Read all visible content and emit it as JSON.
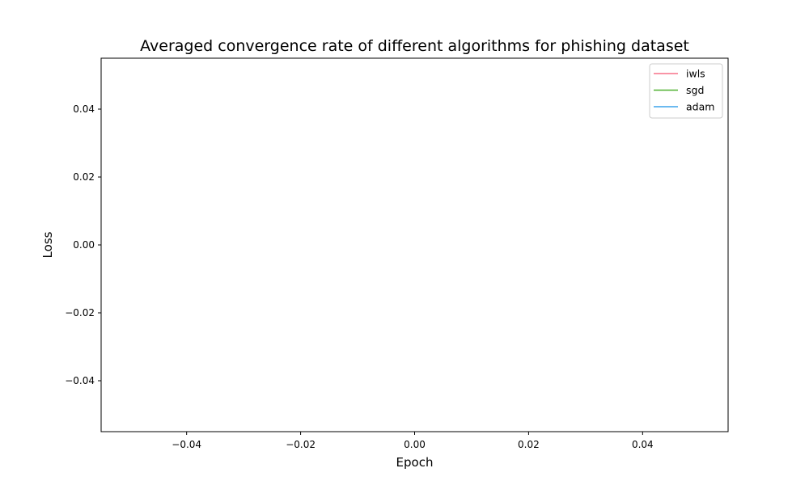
{
  "chart_data": {
    "type": "line",
    "title": "Averaged convergence rate of different algorithms for phishing dataset",
    "xlabel": "Epoch",
    "ylabel": "Loss",
    "xlim": [
      -0.055,
      0.055
    ],
    "ylim": [
      -0.055,
      0.055
    ],
    "x_ticks": [
      -0.04,
      -0.02,
      0.0,
      0.02,
      0.04
    ],
    "x_tick_labels": [
      "−0.04",
      "−0.02",
      "0.00",
      "0.02",
      "0.04"
    ],
    "y_ticks": [
      0.04,
      0.02,
      0.0,
      -0.02,
      -0.04
    ],
    "y_tick_labels": [
      "0.04",
      "0.02",
      "0.00",
      "−0.02",
      "−0.04"
    ],
    "grid": false,
    "legend_position": "top-right",
    "series": [
      {
        "name": "iwls",
        "color": "#f77189",
        "x": [],
        "y": []
      },
      {
        "name": "sgd",
        "color": "#50b131",
        "x": [],
        "y": []
      },
      {
        "name": "adam",
        "color": "#3ba3ec",
        "x": [],
        "y": []
      }
    ]
  }
}
